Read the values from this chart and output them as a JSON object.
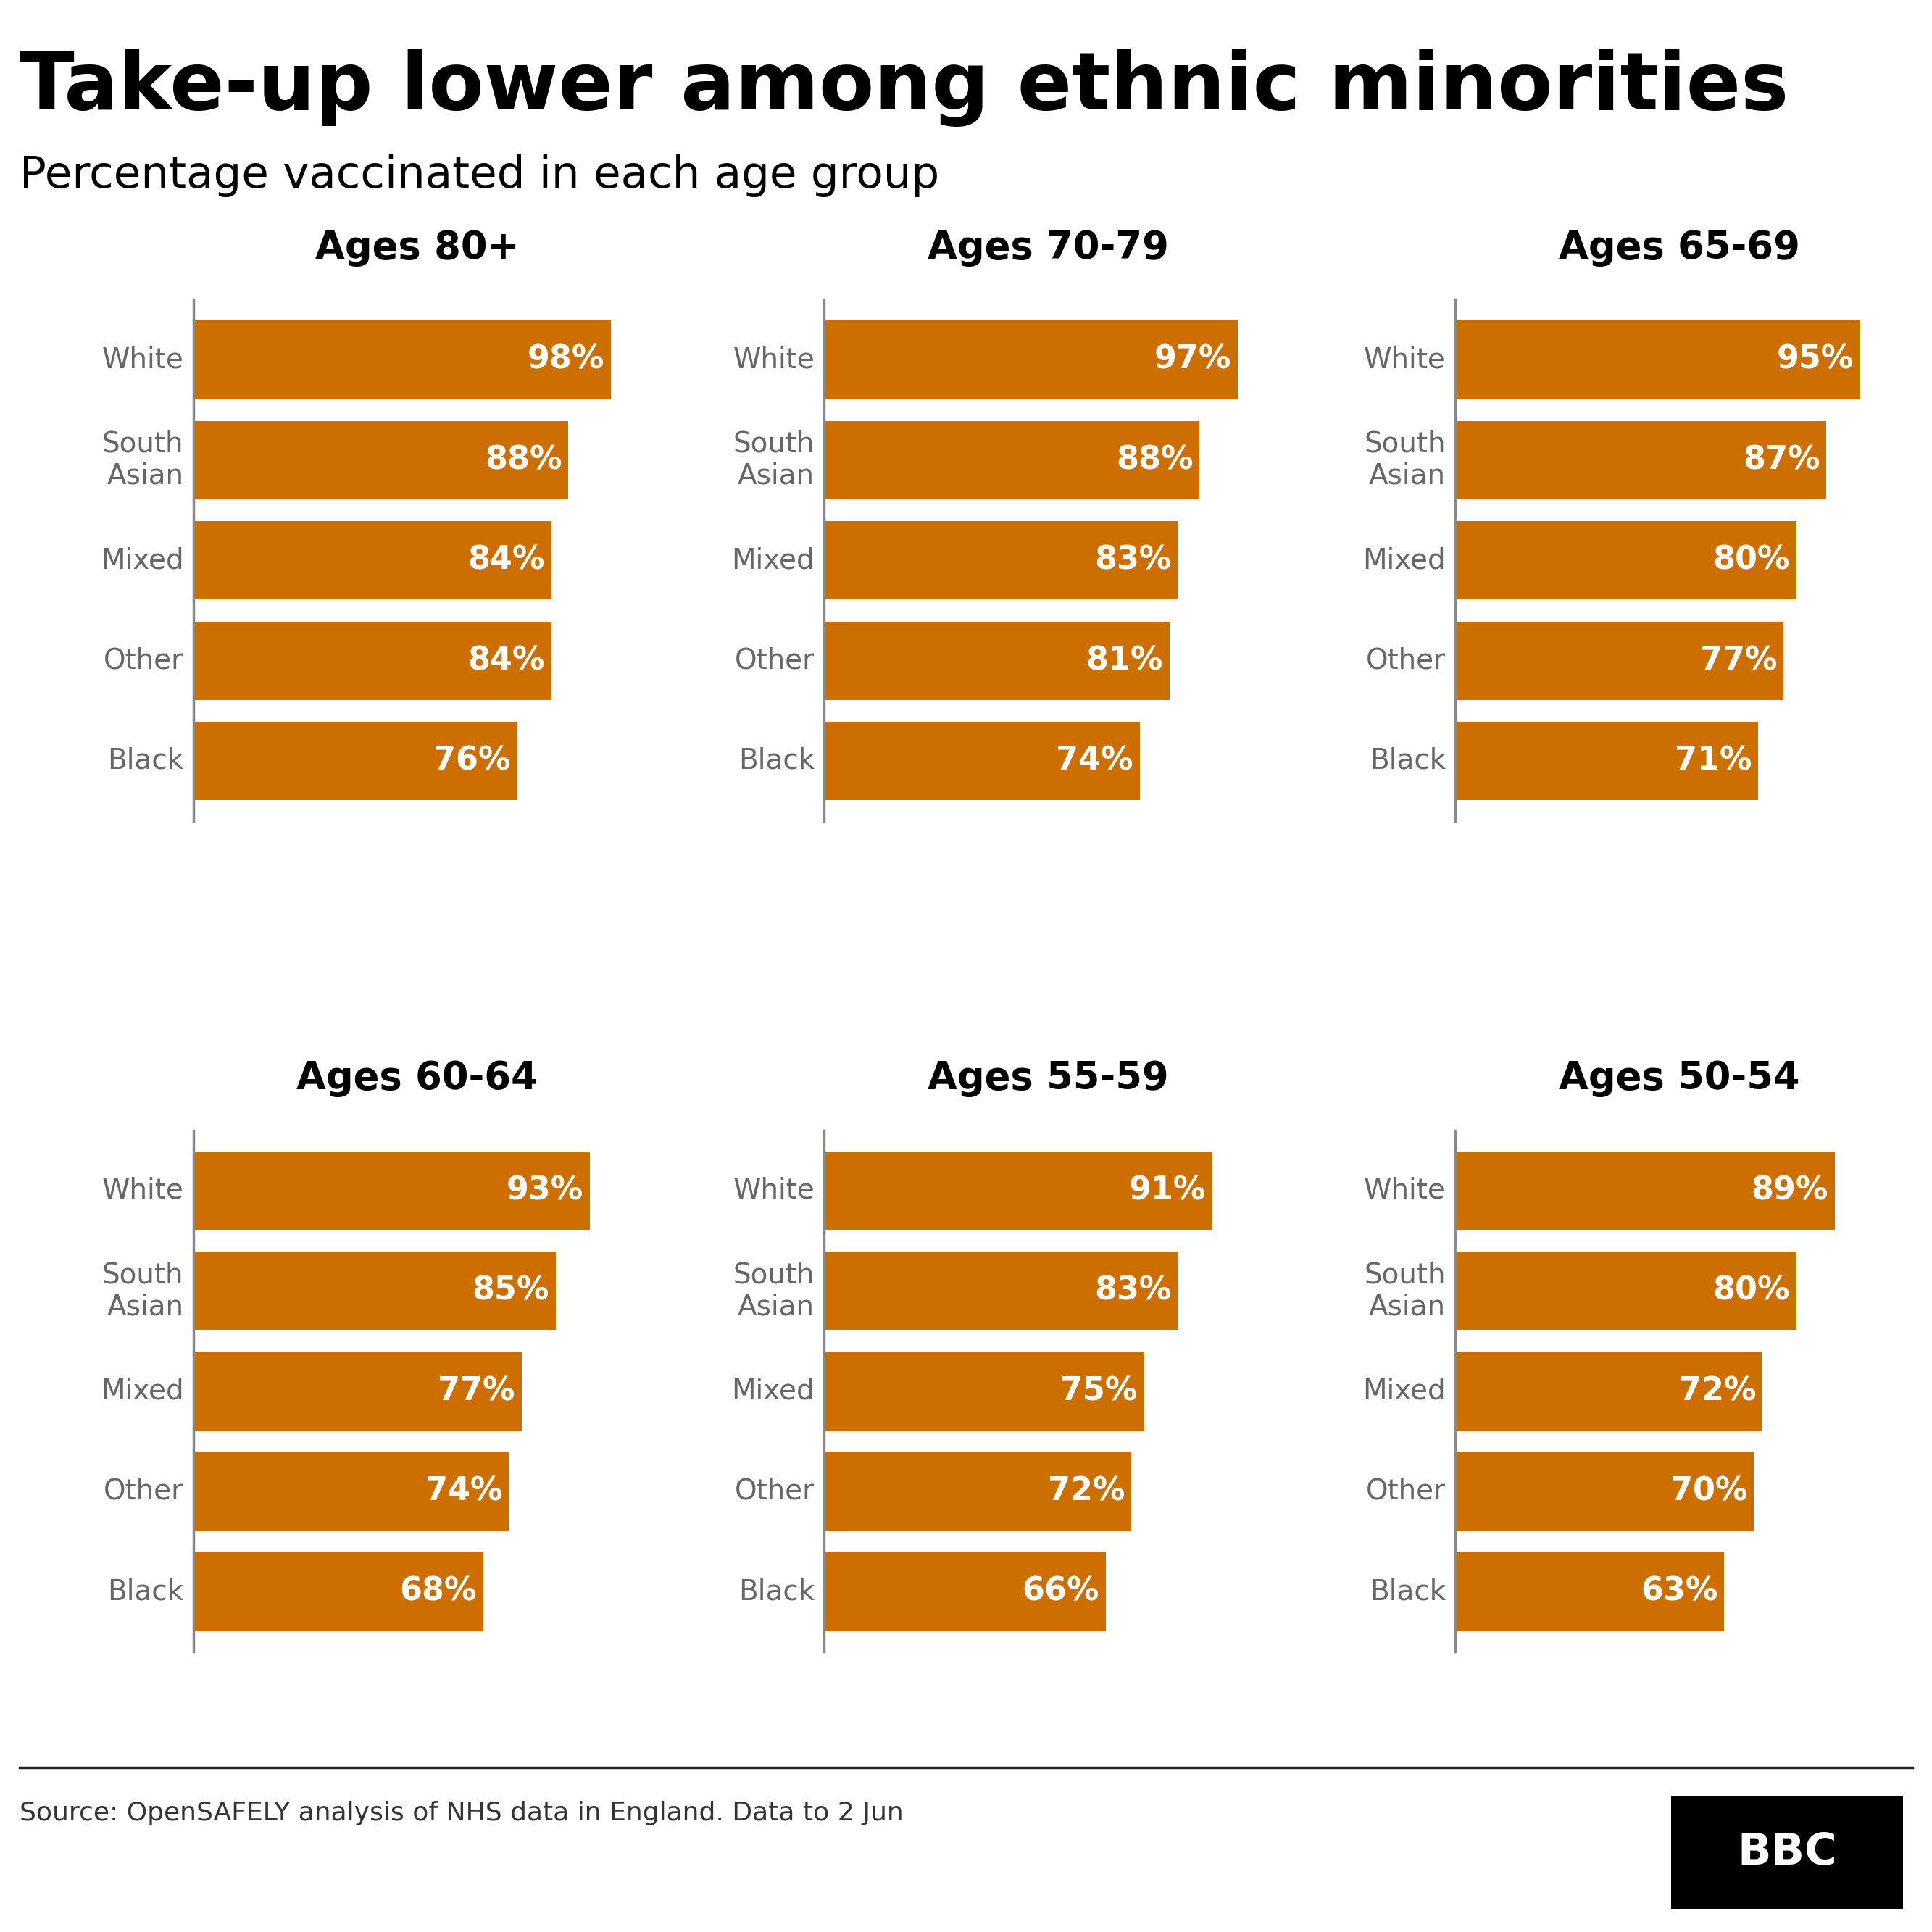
{
  "title": "Take-up lower among ethnic minorities",
  "subtitle": "Percentage vaccinated in each age group",
  "source": "Source: OpenSAFELY analysis of NHS data in England. Data to 2 Jun",
  "bar_color": "#CC6E00",
  "text_color_label": "#666666",
  "title_color": "#000000",
  "background_color": "#ffffff",
  "categories": [
    "White",
    "South\nAsian",
    "Mixed",
    "Other",
    "Black"
  ],
  "panels": [
    {
      "title": "Ages 80+",
      "values": [
        98,
        88,
        84,
        84,
        76
      ]
    },
    {
      "title": "Ages 70-79",
      "values": [
        97,
        88,
        83,
        81,
        74
      ]
    },
    {
      "title": "Ages 65-69",
      "values": [
        95,
        87,
        80,
        77,
        71
      ]
    },
    {
      "title": "Ages 60-64",
      "values": [
        93,
        85,
        77,
        74,
        68
      ]
    },
    {
      "title": "Ages 55-59",
      "values": [
        91,
        83,
        75,
        72,
        66
      ]
    },
    {
      "title": "Ages 50-54",
      "values": [
        89,
        80,
        72,
        70,
        63
      ]
    }
  ]
}
